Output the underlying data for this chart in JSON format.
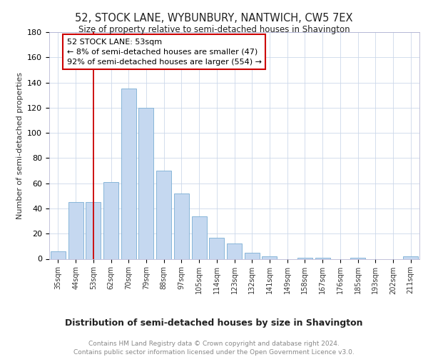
{
  "title": "52, STOCK LANE, WYBUNBURY, NANTWICH, CW5 7EX",
  "subtitle": "Size of property relative to semi-detached houses in Shavington",
  "xlabel": "Distribution of semi-detached houses by size in Shavington",
  "ylabel": "Number of semi-detached properties",
  "footer": "Contains HM Land Registry data © Crown copyright and database right 2024.\nContains public sector information licensed under the Open Government Licence v3.0.",
  "categories": [
    "35sqm",
    "44sqm",
    "53sqm",
    "62sqm",
    "70sqm",
    "79sqm",
    "88sqm",
    "97sqm",
    "105sqm",
    "114sqm",
    "123sqm",
    "132sqm",
    "141sqm",
    "149sqm",
    "158sqm",
    "167sqm",
    "176sqm",
    "185sqm",
    "193sqm",
    "202sqm",
    "211sqm"
  ],
  "values": [
    6,
    45,
    45,
    61,
    135,
    120,
    70,
    52,
    34,
    17,
    12,
    5,
    2,
    0,
    1,
    1,
    0,
    1,
    0,
    0,
    2
  ],
  "bar_color": "#c5d8f0",
  "bar_edge_color": "#7aadd4",
  "highlight_index": 2,
  "annotation_line1": "52 STOCK LANE: 53sqm",
  "annotation_line2": "← 8% of semi-detached houses are smaller (47)",
  "annotation_line3": "92% of semi-detached houses are larger (554) →",
  "annotation_box_color": "#ffffff",
  "annotation_box_edge": "#cc0000",
  "red_line_color": "#cc0000",
  "ylim": [
    0,
    180
  ],
  "yticks": [
    0,
    20,
    40,
    60,
    80,
    100,
    120,
    140,
    160,
    180
  ],
  "background_color": "#ffffff",
  "grid_color": "#ccd8ea",
  "title_fontsize": 10.5,
  "subtitle_fontsize": 8.5,
  "ylabel_fontsize": 8,
  "xtick_fontsize": 7,
  "ytick_fontsize": 8,
  "xlabel_fontsize": 9,
  "footer_fontsize": 6.5,
  "annotation_fontsize": 8
}
